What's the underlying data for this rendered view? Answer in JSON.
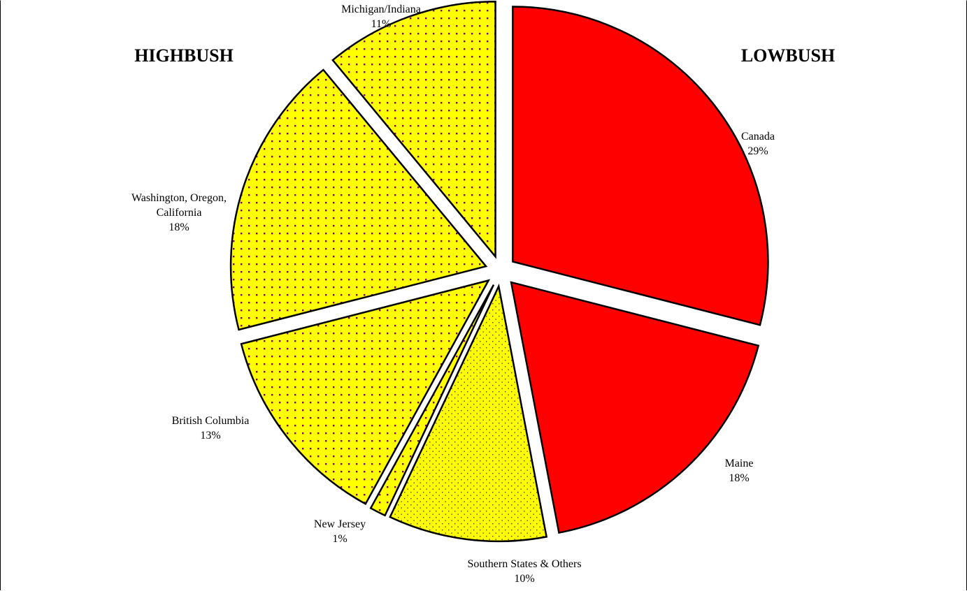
{
  "colors": {
    "lowbush": "#ff0000",
    "highbush": "#ffff00",
    "highbush_dots": "#800080",
    "southern_dots": "#404040",
    "outline": "#000000"
  },
  "chart_data": {
    "type": "pie",
    "group_labels": {
      "left": "HIGHBUSH",
      "right": "LOWBUSH"
    },
    "slices": [
      {
        "label_lines": [
          "Canada"
        ],
        "pct_label": "29%",
        "value": 29,
        "group": "lowbush",
        "pattern": "solid"
      },
      {
        "label_lines": [
          "Maine"
        ],
        "pct_label": "18%",
        "value": 18,
        "group": "lowbush",
        "pattern": "solid"
      },
      {
        "label_lines": [
          "Southern States & Others"
        ],
        "pct_label": "10%",
        "value": 10,
        "group": "highbush",
        "pattern": "fine-dots"
      },
      {
        "label_lines": [
          "New Jersey"
        ],
        "pct_label": "1%",
        "value": 1,
        "group": "highbush",
        "pattern": "coarse-dots"
      },
      {
        "label_lines": [
          "British Columbia"
        ],
        "pct_label": "13%",
        "value": 13,
        "group": "highbush",
        "pattern": "coarse-dots"
      },
      {
        "label_lines": [
          "Washington, Oregon,",
          "California"
        ],
        "pct_label": "18%",
        "value": 18,
        "group": "highbush",
        "pattern": "coarse-dots"
      },
      {
        "label_lines": [
          "Michigan/Indiana"
        ],
        "pct_label": "11%",
        "value": 11,
        "group": "highbush",
        "pattern": "coarse-dots"
      }
    ]
  }
}
